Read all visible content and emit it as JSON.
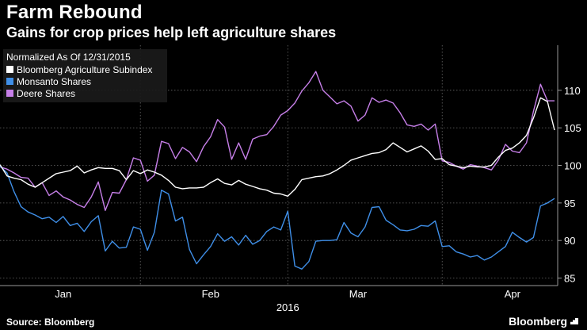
{
  "header": {
    "title": "Farm Rebound",
    "subtitle": "Gains for crop prices help left agriculture shares"
  },
  "footer": {
    "source": "Source: Bloomberg",
    "brand": "Bloomberg"
  },
  "colors": {
    "background": "#000000",
    "grid": "#666666",
    "text": "#ffffff",
    "legend_bg": "#1a1a1a"
  },
  "chart_data": {
    "type": "line",
    "legend_title": "Normalized As Of 12/31/2015",
    "legend_position": "top-left",
    "x_range": [
      0,
      79
    ],
    "ylim": [
      84,
      116
    ],
    "y_ticks": [
      85,
      90,
      95,
      100,
      105,
      110
    ],
    "month_ticks": [
      {
        "label": "Jan",
        "x": 9
      },
      {
        "label": "Feb",
        "x": 30
      },
      {
        "label": "Mar",
        "x": 51
      },
      {
        "label": "Apr",
        "x": 73
      }
    ],
    "month_dividers": [
      20,
      41,
      63
    ],
    "year_label": "2016",
    "series": [
      {
        "name": "Bloomberg Agriculture Subindex",
        "color": "#ffffff",
        "values": [
          100.1,
          98.6,
          98.3,
          98.1,
          97.5,
          97.1,
          97.7,
          98.3,
          98.9,
          99.1,
          99.3,
          99.9,
          99.0,
          99.4,
          99.7,
          99.6,
          99.6,
          99.3,
          98.1,
          99.3,
          98.9,
          99.4,
          99.1,
          98.7,
          98.0,
          97.1,
          96.9,
          97.0,
          97.0,
          97.1,
          97.7,
          98.2,
          97.6,
          97.4,
          98.0,
          97.5,
          97.2,
          96.9,
          96.7,
          96.3,
          96.2,
          95.9,
          96.8,
          98.1,
          98.3,
          98.5,
          98.6,
          98.9,
          99.4,
          100.0,
          100.7,
          101.0,
          101.3,
          101.6,
          101.7,
          102.1,
          103.0,
          102.4,
          101.8,
          102.2,
          102.6,
          101.9,
          100.8,
          100.9,
          100.1,
          99.9,
          99.7,
          99.9,
          99.8,
          99.8,
          100.0,
          101.1,
          102.0,
          102.3,
          103.0,
          104.0,
          106.3,
          109.0,
          108.5,
          104.7
        ]
      },
      {
        "name": "Monsanto Shares",
        "color": "#3f8fe8",
        "values": [
          99.9,
          99.0,
          96.5,
          94.5,
          93.8,
          93.4,
          92.9,
          93.1,
          92.4,
          93.2,
          92.0,
          92.3,
          91.2,
          92.5,
          93.3,
          88.6,
          89.9,
          89.0,
          89.1,
          91.8,
          91.5,
          88.7,
          91.1,
          96.7,
          96.2,
          92.6,
          93.1,
          88.8,
          86.9,
          88.1,
          89.2,
          90.9,
          89.9,
          90.5,
          89.4,
          90.7,
          89.5,
          90.0,
          91.2,
          91.8,
          91.4,
          93.9,
          86.6,
          86.2,
          87.2,
          89.9,
          90.0,
          90.0,
          90.1,
          92.4,
          91.0,
          90.5,
          91.8,
          94.4,
          94.5,
          92.7,
          92.1,
          91.4,
          91.3,
          91.5,
          92.0,
          91.9,
          92.6,
          89.2,
          89.3,
          88.5,
          88.2,
          87.8,
          88.0,
          87.4,
          87.8,
          88.5,
          89.2,
          91.1,
          90.4,
          89.8,
          90.4,
          94.6,
          95.0,
          95.6
        ]
      },
      {
        "name": "Deere Shares",
        "color": "#c67fe8",
        "values": [
          99.8,
          99.5,
          99.0,
          98.4,
          98.3,
          97.1,
          97.7,
          96.0,
          96.6,
          95.8,
          95.4,
          94.8,
          94.4,
          95.8,
          97.8,
          94.0,
          96.4,
          96.3,
          98.1,
          101.0,
          100.7,
          97.9,
          98.7,
          103.2,
          102.9,
          100.9,
          102.4,
          101.8,
          100.5,
          102.5,
          103.8,
          106.1,
          105.1,
          100.8,
          103.0,
          100.8,
          103.5,
          103.9,
          104.1,
          105.2,
          106.7,
          107.3,
          108.3,
          109.9,
          111.0,
          112.5,
          110.0,
          109.1,
          108.2,
          108.6,
          107.9,
          105.9,
          106.7,
          109.0,
          108.4,
          108.7,
          108.3,
          107.0,
          105.4,
          105.2,
          105.5,
          104.7,
          105.5,
          100.6,
          100.4,
          99.9,
          99.5,
          100.1,
          99.9,
          99.7,
          99.4,
          100.7,
          102.8,
          101.9,
          101.7,
          103.0,
          107.2,
          110.8,
          108.6,
          108.6
        ]
      }
    ]
  }
}
